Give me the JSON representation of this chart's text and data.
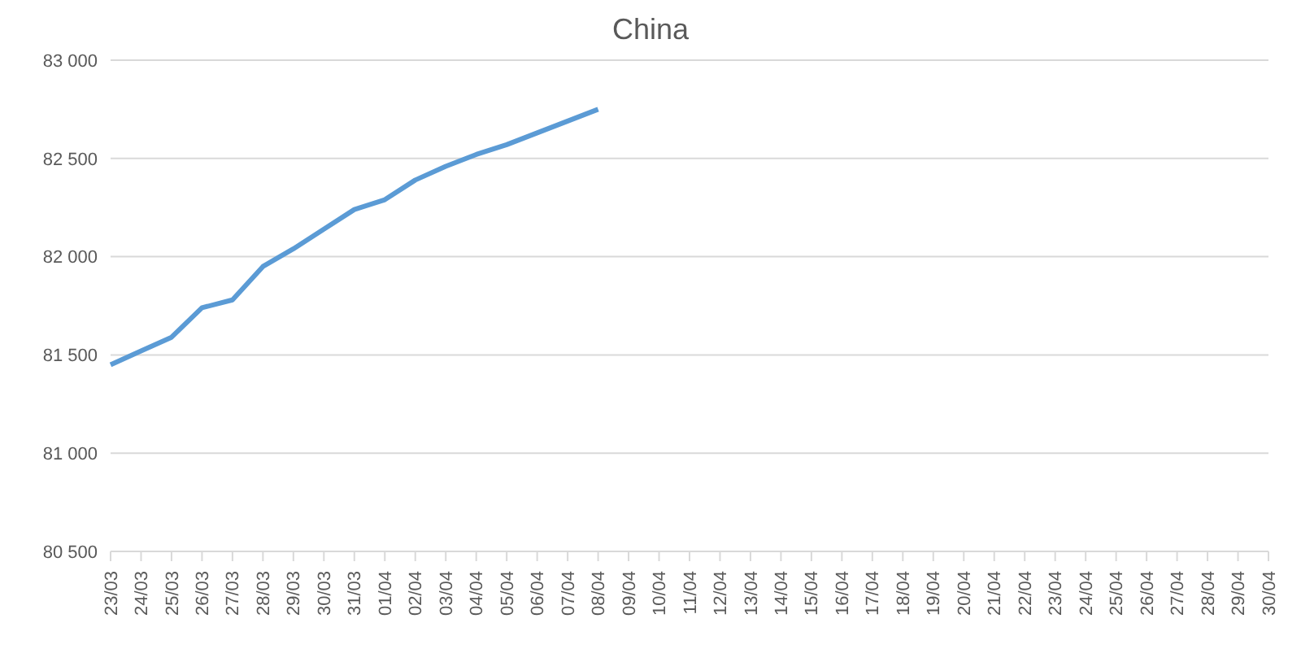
{
  "chart_data": {
    "type": "line",
    "title": "China",
    "categories": [
      "23/03",
      "24/03",
      "25/03",
      "26/03",
      "27/03",
      "28/03",
      "29/03",
      "30/03",
      "31/03",
      "01/04",
      "02/04",
      "03/04",
      "04/04",
      "05/04",
      "06/04",
      "07/04",
      "08/04",
      "09/04",
      "10/04",
      "11/04",
      "12/04",
      "13/04",
      "14/04",
      "15/04",
      "16/04",
      "17/04",
      "18/04",
      "19/04",
      "20/04",
      "21/04",
      "22/04",
      "23/04",
      "24/04",
      "25/04",
      "26/04",
      "27/04",
      "28/04",
      "29/04",
      "30/04"
    ],
    "series": [
      {
        "color": "#5b9bd5",
        "values": [
          81450,
          81520,
          81590,
          81740,
          81780,
          81950,
          82040,
          82140,
          82240,
          82290,
          82390,
          82460,
          82520,
          82570,
          82630,
          82690,
          82750,
          null,
          null,
          null,
          null,
          null,
          null,
          null,
          null,
          null,
          null,
          null,
          null,
          null,
          null,
          null,
          null,
          null,
          null,
          null,
          null,
          null,
          null
        ]
      }
    ],
    "ylim": [
      80500,
      83000
    ],
    "yticks": [
      {
        "value": 80500,
        "label": "80 500"
      },
      {
        "value": 81000,
        "label": "81 000"
      },
      {
        "value": 81500,
        "label": "81 500"
      },
      {
        "value": 82000,
        "label": "82 000"
      },
      {
        "value": 82500,
        "label": "82 500"
      },
      {
        "value": 83000,
        "label": "83 000"
      }
    ],
    "grid": "y",
    "legend": false,
    "marker": "none",
    "line_style": "solid"
  }
}
